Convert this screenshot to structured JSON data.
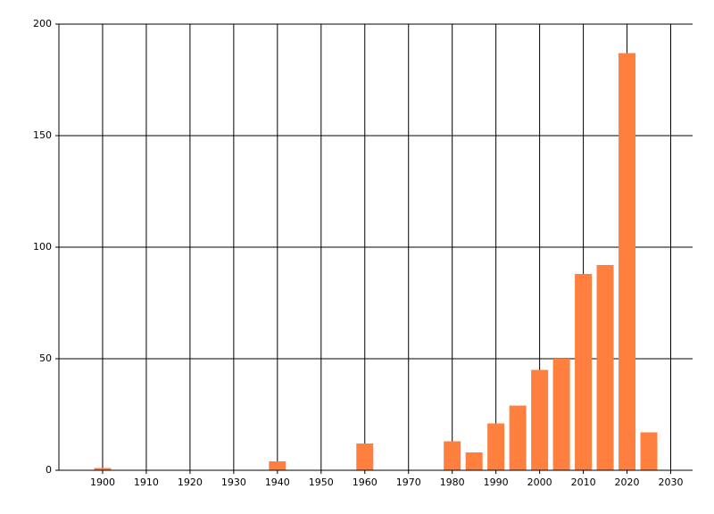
{
  "chart_data": {
    "type": "bar",
    "x": [
      1900,
      1940,
      1960,
      1980,
      1985,
      1990,
      1995,
      2000,
      2005,
      2010,
      2015,
      2020,
      2025
    ],
    "values": [
      1,
      4,
      12,
      13,
      8,
      21,
      29,
      45,
      50,
      88,
      92,
      187,
      17
    ],
    "color": "#ff7f3f",
    "xlim": [
      1890,
      2035
    ],
    "xticks": [
      1900,
      1910,
      1920,
      1930,
      1940,
      1950,
      1960,
      1970,
      1980,
      1990,
      2000,
      2010,
      2020,
      2030
    ],
    "ylim": [
      0,
      200
    ],
    "yticks": [
      0,
      50,
      100,
      150,
      200
    ],
    "grid": true
  }
}
